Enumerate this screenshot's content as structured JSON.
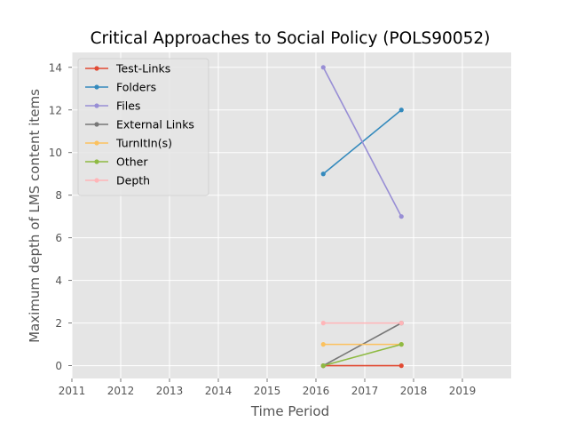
{
  "chart_data": {
    "type": "line",
    "title": "Critical Approaches to Social Policy (POLS90052)",
    "xlabel": "Time Period",
    "ylabel": "Maximum depth of LMS content items",
    "xlim": [
      2011,
      2020
    ],
    "ylim": [
      -0.6,
      14.7
    ],
    "xticks": [
      2011,
      2012,
      2013,
      2014,
      2015,
      2016,
      2017,
      2018,
      2019
    ],
    "yticks": [
      0,
      2,
      4,
      6,
      8,
      10,
      12,
      14
    ],
    "grid": true,
    "legend_position": "top-left",
    "x": [
      2016.15,
      2017.75
    ],
    "series": [
      {
        "name": "Test-Links",
        "values": [
          0,
          0
        ],
        "color": "#E24A33"
      },
      {
        "name": "Folders",
        "values": [
          9,
          12
        ],
        "color": "#348ABD"
      },
      {
        "name": "Files",
        "values": [
          14,
          7
        ],
        "color": "#988ED5"
      },
      {
        "name": "External Links",
        "values": [
          0,
          2
        ],
        "color": "#777777"
      },
      {
        "name": "TurnItIn(s)",
        "values": [
          1,
          1
        ],
        "color": "#FBC15E"
      },
      {
        "name": "Other",
        "values": [
          0,
          1
        ],
        "color": "#8EBA42"
      },
      {
        "name": "Depth",
        "values": [
          2,
          2
        ],
        "color": "#FFB5B8"
      }
    ],
    "style": {
      "background": "#E5E5E5",
      "grid_color": "#FFFFFF",
      "text_color": "#555555",
      "title_color": "#000000",
      "axis_label_color": "#555555"
    }
  }
}
